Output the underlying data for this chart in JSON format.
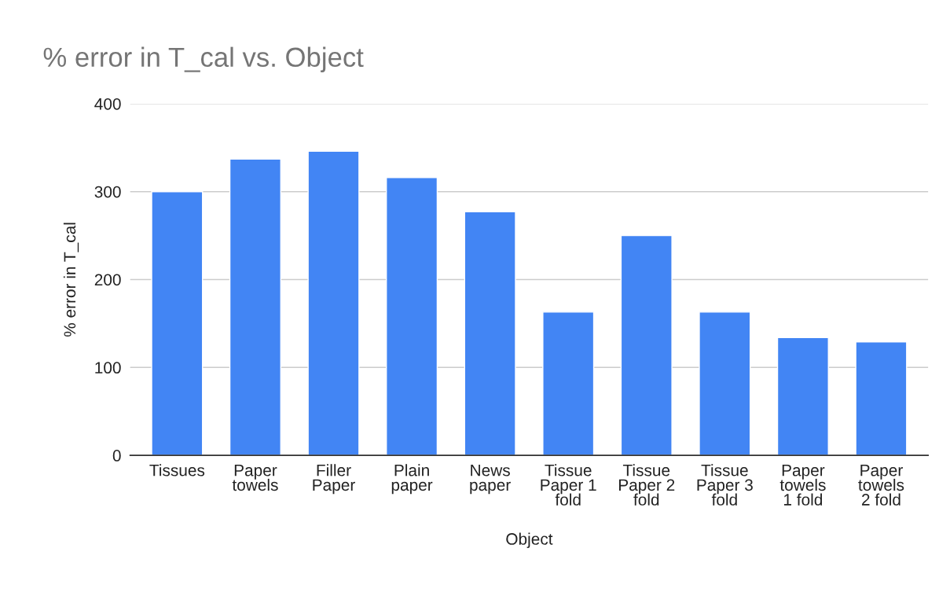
{
  "chart_data": {
    "type": "bar",
    "title": "% error in T_cal vs. Object",
    "xlabel": "Object",
    "ylabel": "% error in T_cal",
    "categories": [
      "Tissues",
      "Paper\ntowels",
      "Filler\nPaper",
      "Plain\npaper",
      "News\npaper",
      "Tissue\nPaper 1\nfold",
      "Tissue\nPaper 2\nfold",
      "Tissue\nPaper 3\nfold",
      "Paper\ntowels\n1 fold",
      "Paper\ntowels\n2 fold"
    ],
    "values": [
      300,
      337,
      346,
      316,
      277,
      163,
      250,
      163,
      134,
      129
    ],
    "color": "#4285f4",
    "ylim": [
      0,
      400
    ],
    "yticks": [
      0,
      100,
      200,
      300,
      400
    ],
    "grid": "y"
  }
}
